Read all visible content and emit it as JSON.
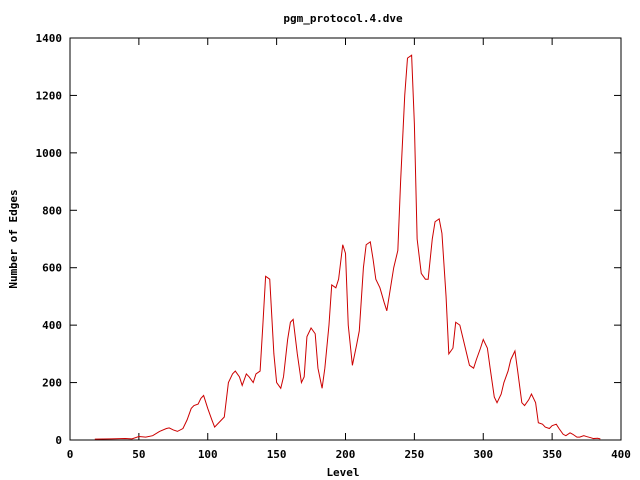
{
  "chart_data": {
    "type": "line",
    "title": "pgm_protocol.4.dve",
    "xlabel": "Level",
    "ylabel": "Number of Edges",
    "xlim": [
      0,
      400
    ],
    "ylim": [
      0,
      1400
    ],
    "xticks": [
      0,
      50,
      100,
      150,
      200,
      250,
      300,
      350,
      400
    ],
    "yticks": [
      0,
      200,
      400,
      600,
      800,
      1000,
      1200,
      1400
    ],
    "grid": false,
    "legend": "none",
    "colors": {
      "series": "#cc0000",
      "axes": "#000000"
    },
    "series": [
      {
        "x": [
          18,
          30,
          40,
          45,
          50,
          55,
          60,
          65,
          70,
          72,
          75,
          78,
          82,
          85,
          88,
          90,
          93,
          95,
          97,
          100,
          103,
          105,
          108,
          110,
          112,
          115,
          118,
          120,
          123,
          125,
          128,
          130,
          133,
          135,
          138,
          140,
          142,
          145,
          148,
          150,
          153,
          155,
          158,
          160,
          162,
          165,
          168,
          170,
          172,
          175,
          178,
          180,
          183,
          185,
          188,
          190,
          193,
          195,
          198,
          200,
          202,
          205,
          208,
          210,
          213,
          215,
          218,
          220,
          222,
          225,
          228,
          230,
          233,
          235,
          238,
          240,
          243,
          245,
          248,
          250,
          252,
          255,
          258,
          260,
          263,
          265,
          268,
          270,
          273,
          275,
          278,
          280,
          283,
          285,
          288,
          290,
          293,
          295,
          298,
          300,
          303,
          305,
          308,
          310,
          313,
          315,
          318,
          320,
          323,
          325,
          328,
          330,
          333,
          335,
          338,
          340,
          343,
          345,
          348,
          350,
          353,
          355,
          358,
          360,
          363,
          365,
          368,
          370,
          373,
          375,
          378,
          380,
          383,
          385
        ],
        "y": [
          3,
          4,
          5,
          4,
          12,
          10,
          15,
          30,
          40,
          42,
          35,
          30,
          40,
          70,
          110,
          120,
          125,
          145,
          155,
          110,
          70,
          45,
          60,
          70,
          80,
          200,
          230,
          240,
          220,
          190,
          230,
          220,
          200,
          230,
          240,
          400,
          570,
          560,
          300,
          200,
          180,
          220,
          350,
          410,
          420,
          300,
          200,
          220,
          360,
          390,
          370,
          250,
          180,
          250,
          400,
          540,
          530,
          560,
          680,
          650,
          400,
          260,
          330,
          380,
          600,
          680,
          690,
          630,
          560,
          530,
          480,
          450,
          540,
          600,
          660,
          900,
          1200,
          1330,
          1340,
          1100,
          700,
          580,
          560,
          560,
          700,
          760,
          770,
          720,
          500,
          300,
          320,
          410,
          400,
          360,
          300,
          260,
          250,
          280,
          320,
          350,
          320,
          250,
          150,
          130,
          160,
          200,
          240,
          280,
          310,
          240,
          130,
          120,
          140,
          160,
          130,
          60,
          55,
          45,
          40,
          50,
          55,
          40,
          20,
          15,
          25,
          20,
          10,
          10,
          15,
          12,
          8,
          5,
          6,
          4
        ]
      }
    ]
  }
}
